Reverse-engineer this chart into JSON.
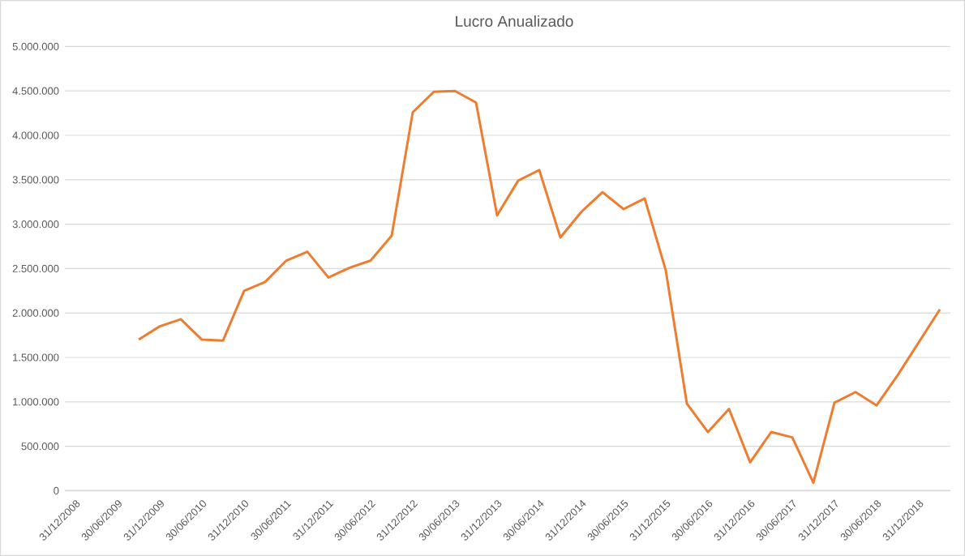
{
  "chart_data": {
    "type": "line",
    "title": "Lucro Anualizado",
    "categories": [
      "31/12/2008",
      null,
      "30/06/2009",
      null,
      "31/12/2009",
      null,
      "30/06/2010",
      null,
      "31/12/2010",
      null,
      "30/06/2011",
      null,
      "31/12/2011",
      null,
      "30/06/2012",
      null,
      "31/12/2012",
      null,
      "30/06/2013",
      null,
      "31/12/2013",
      null,
      "30/06/2014",
      null,
      "31/12/2014",
      null,
      "30/06/2015",
      null,
      "31/12/2015",
      null,
      "30/06/2016",
      null,
      "31/12/2016",
      null,
      "30/06/2017",
      null,
      "31/12/2017",
      null,
      "30/06/2018",
      null,
      "31/12/2018",
      null
    ],
    "series": [
      {
        "color": "#ed7d31",
        "values": [
          null,
          null,
          null,
          1700000,
          1850000,
          1930000,
          1700000,
          1690000,
          2250000,
          2350000,
          2590000,
          2690000,
          2400000,
          2510000,
          2590000,
          2870000,
          4260000,
          4490000,
          4500000,
          4370000,
          3100000,
          3490000,
          3610000,
          2850000,
          3140000,
          3360000,
          3170000,
          3290000,
          2480000,
          980000,
          660000,
          920000,
          320000,
          660000,
          600000,
          90000,
          990000,
          1110000,
          960000,
          1300000,
          1670000,
          2040000
        ]
      }
    ],
    "ylim": [
      0,
      5000000
    ],
    "yticks": [
      0,
      {
        "value": 500000,
        "label": "500.000"
      },
      {
        "value": 1000000,
        "label": "1.000.000"
      },
      {
        "value": 1500000,
        "label": "1.500.000"
      },
      {
        "value": 2000000,
        "label": "2.000.000"
      },
      {
        "value": 2500000,
        "label": "2.500.000"
      },
      {
        "value": 3000000,
        "label": "3.000.000"
      },
      {
        "value": 3500000,
        "label": "3.500.000"
      },
      {
        "value": 4000000,
        "label": "4.000.000"
      },
      {
        "value": 4500000,
        "label": "4.500.000"
      },
      {
        "value": 5000000,
        "label": "5.000.000"
      }
    ],
    "grid": "y",
    "legend": false,
    "marker": "none",
    "line_style": "solid"
  }
}
